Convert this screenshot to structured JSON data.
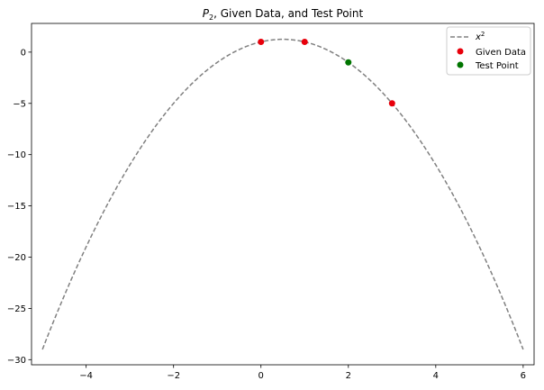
{
  "chart_data": {
    "type": "line",
    "title_prefix": "P",
    "title_sub": "2",
    "title_suffix": ", Given Data, and Test Point",
    "xlabel": "",
    "ylabel": "",
    "xlim": [
      -5.25,
      6.25
    ],
    "ylim": [
      -30.5,
      2.8
    ],
    "xticks": [
      -4,
      -2,
      0,
      2,
      4,
      6
    ],
    "yticks": [
      0,
      -5,
      -10,
      -15,
      -20,
      -25,
      -30
    ],
    "xtick_labels": [
      "−4",
      "−2",
      "0",
      "2",
      "4",
      "6"
    ],
    "ytick_labels": [
      "0",
      "−5",
      "−10",
      "−15",
      "−20",
      "−25",
      "−30"
    ],
    "grid": false,
    "legend_position": "top-right",
    "curve": {
      "name_base": "x",
      "name_sup": "2",
      "style": "dashed",
      "color": "#808080",
      "x_start": -5,
      "x_end": 6,
      "coeffs": {
        "a": -1,
        "b": 1,
        "c": 1
      }
    },
    "given_data": {
      "name": "Given Data",
      "color": "#e8000b",
      "points": [
        {
          "x": 0,
          "y": 1
        },
        {
          "x": 1,
          "y": 1
        },
        {
          "x": 3,
          "y": -5
        }
      ]
    },
    "test_point": {
      "name": "Test Point",
      "color": "#007500",
      "points": [
        {
          "x": 2,
          "y": -1
        }
      ]
    }
  }
}
